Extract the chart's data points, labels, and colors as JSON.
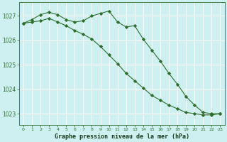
{
  "background_color": "#cef0f0",
  "grid_color": "#ffffff",
  "line_color": "#2d6e2d",
  "x": [
    0,
    1,
    2,
    3,
    4,
    5,
    6,
    7,
    8,
    9,
    10,
    11,
    12,
    13,
    14,
    15,
    16,
    17,
    18,
    19,
    20,
    21,
    22,
    23
  ],
  "line1": [
    1026.7,
    1026.85,
    1027.05,
    1027.15,
    1027.05,
    1026.85,
    1026.75,
    1026.8,
    1027.0,
    1027.1,
    1027.2,
    1026.75,
    1026.55,
    1026.6,
    1026.05,
    1025.6,
    1025.15,
    1024.65,
    1024.2,
    1023.7,
    1023.35,
    1023.05,
    1023.0,
    1023.0
  ],
  "line2": [
    1026.7,
    1026.75,
    1026.8,
    1026.9,
    1026.75,
    1026.6,
    1026.4,
    1026.25,
    1026.05,
    1025.75,
    1025.4,
    1025.05,
    1024.65,
    1024.35,
    1024.05,
    1023.75,
    1023.55,
    1023.35,
    1023.2,
    1023.05,
    1023.0,
    1022.95,
    1022.95,
    1023.0
  ],
  "ylim": [
    1022.55,
    1027.55
  ],
  "yticks": [
    1023,
    1024,
    1025,
    1026,
    1027
  ],
  "xticks": [
    0,
    1,
    2,
    3,
    4,
    5,
    6,
    7,
    8,
    9,
    10,
    11,
    12,
    13,
    14,
    15,
    16,
    17,
    18,
    19,
    20,
    21,
    22,
    23
  ],
  "xlabel": "Graphe pression niveau de la mer (hPa)",
  "marker": "D",
  "marker_size": 2.2,
  "line_width": 0.8
}
